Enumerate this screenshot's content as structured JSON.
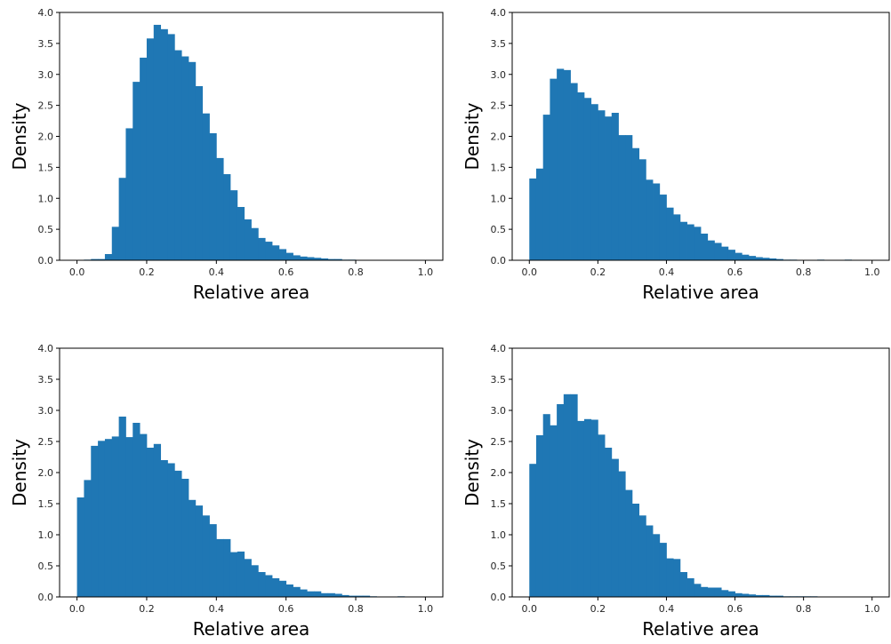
{
  "chart_data": [
    {
      "type": "bar",
      "subtype": "histogram",
      "xlabel": "Relative area",
      "ylabel": "Density",
      "xlim": [
        -0.05,
        1.05
      ],
      "ylim": [
        0,
        4.0
      ],
      "xticks": [
        "0.0",
        "0.2",
        "0.4",
        "0.6",
        "0.8",
        "1.0"
      ],
      "yticks": [
        "0.0",
        "0.5",
        "1.0",
        "1.5",
        "2.0",
        "2.5",
        "3.0",
        "3.5",
        "4.0"
      ],
      "bin_width": 0.02,
      "bin_start": 0.0,
      "values": [
        0.0,
        0.01,
        0.02,
        0.02,
        0.1,
        0.54,
        1.33,
        2.13,
        2.88,
        3.27,
        3.58,
        3.8,
        3.73,
        3.65,
        3.39,
        3.29,
        3.2,
        2.81,
        2.37,
        2.05,
        1.65,
        1.39,
        1.13,
        0.86,
        0.66,
        0.52,
        0.36,
        0.3,
        0.24,
        0.18,
        0.12,
        0.08,
        0.06,
        0.05,
        0.04,
        0.03,
        0.02,
        0.02,
        0.01,
        0.01,
        0.0,
        0.0,
        0.0,
        0.0,
        0.0,
        0.0,
        0.0,
        0.0,
        0.0,
        0.0
      ]
    },
    {
      "type": "bar",
      "subtype": "histogram",
      "xlabel": "Relative area",
      "ylabel": "Density",
      "xlim": [
        -0.05,
        1.05
      ],
      "ylim": [
        0,
        4.0
      ],
      "xticks": [
        "0.0",
        "0.2",
        "0.4",
        "0.6",
        "0.8",
        "1.0"
      ],
      "yticks": [
        "0.0",
        "0.5",
        "1.0",
        "1.5",
        "2.0",
        "2.5",
        "3.0",
        "3.5",
        "4.0"
      ],
      "bin_width": 0.02,
      "bin_start": 0.0,
      "values": [
        1.32,
        1.48,
        2.35,
        2.93,
        3.09,
        3.07,
        2.86,
        2.71,
        2.62,
        2.52,
        2.42,
        2.32,
        2.38,
        2.02,
        2.02,
        1.81,
        1.63,
        1.3,
        1.24,
        1.06,
        0.85,
        0.74,
        0.62,
        0.58,
        0.54,
        0.43,
        0.32,
        0.28,
        0.22,
        0.17,
        0.12,
        0.09,
        0.07,
        0.05,
        0.04,
        0.03,
        0.02,
        0.01,
        0.01,
        0.0,
        0.0,
        0.0,
        0.01,
        0.0,
        0.0,
        0.0,
        0.01,
        0.0,
        0.0,
        0.0
      ]
    },
    {
      "type": "bar",
      "subtype": "histogram",
      "xlabel": "Relative area",
      "ylabel": "Density",
      "xlim": [
        -0.05,
        1.05
      ],
      "ylim": [
        0,
        4.0
      ],
      "xticks": [
        "0.0",
        "0.2",
        "0.4",
        "0.6",
        "0.8",
        "1.0"
      ],
      "yticks": [
        "0.0",
        "0.5",
        "1.0",
        "1.5",
        "2.0",
        "2.5",
        "3.0",
        "3.5",
        "4.0"
      ],
      "bin_width": 0.02,
      "bin_start": 0.0,
      "values": [
        1.6,
        1.88,
        2.43,
        2.51,
        2.54,
        2.58,
        2.9,
        2.57,
        2.8,
        2.62,
        2.4,
        2.46,
        2.2,
        2.15,
        2.03,
        1.9,
        1.56,
        1.47,
        1.31,
        1.17,
        0.93,
        0.93,
        0.72,
        0.73,
        0.61,
        0.51,
        0.4,
        0.35,
        0.3,
        0.26,
        0.2,
        0.16,
        0.12,
        0.09,
        0.09,
        0.06,
        0.06,
        0.05,
        0.03,
        0.02,
        0.02,
        0.02,
        0.01,
        0.0,
        0.0,
        0.0,
        0.01,
        0.0,
        0.0,
        0.0
      ]
    },
    {
      "type": "bar",
      "subtype": "histogram",
      "xlabel": "Relative area",
      "ylabel": "Density",
      "xlim": [
        -0.05,
        1.05
      ],
      "ylim": [
        0,
        4.0
      ],
      "xticks": [
        "0.0",
        "0.2",
        "0.4",
        "0.6",
        "0.8",
        "1.0"
      ],
      "yticks": [
        "0.0",
        "0.5",
        "1.0",
        "1.5",
        "2.0",
        "2.5",
        "3.0",
        "3.5",
        "4.0"
      ],
      "bin_width": 0.02,
      "bin_start": 0.0,
      "values": [
        2.14,
        2.6,
        2.94,
        2.76,
        3.1,
        3.26,
        3.26,
        2.83,
        2.86,
        2.85,
        2.61,
        2.4,
        2.22,
        2.02,
        1.72,
        1.5,
        1.31,
        1.15,
        1.01,
        0.87,
        0.62,
        0.61,
        0.4,
        0.3,
        0.21,
        0.16,
        0.15,
        0.15,
        0.11,
        0.09,
        0.06,
        0.05,
        0.04,
        0.03,
        0.03,
        0.02,
        0.02,
        0.01,
        0.01,
        0.01,
        0.01,
        0.01,
        0.0,
        0.0,
        0.0,
        0.0,
        0.0,
        0.0,
        0.0,
        0.0
      ]
    }
  ],
  "colors": {
    "bar": "#1f77b4",
    "axes": "#000000",
    "text": "#262626"
  }
}
